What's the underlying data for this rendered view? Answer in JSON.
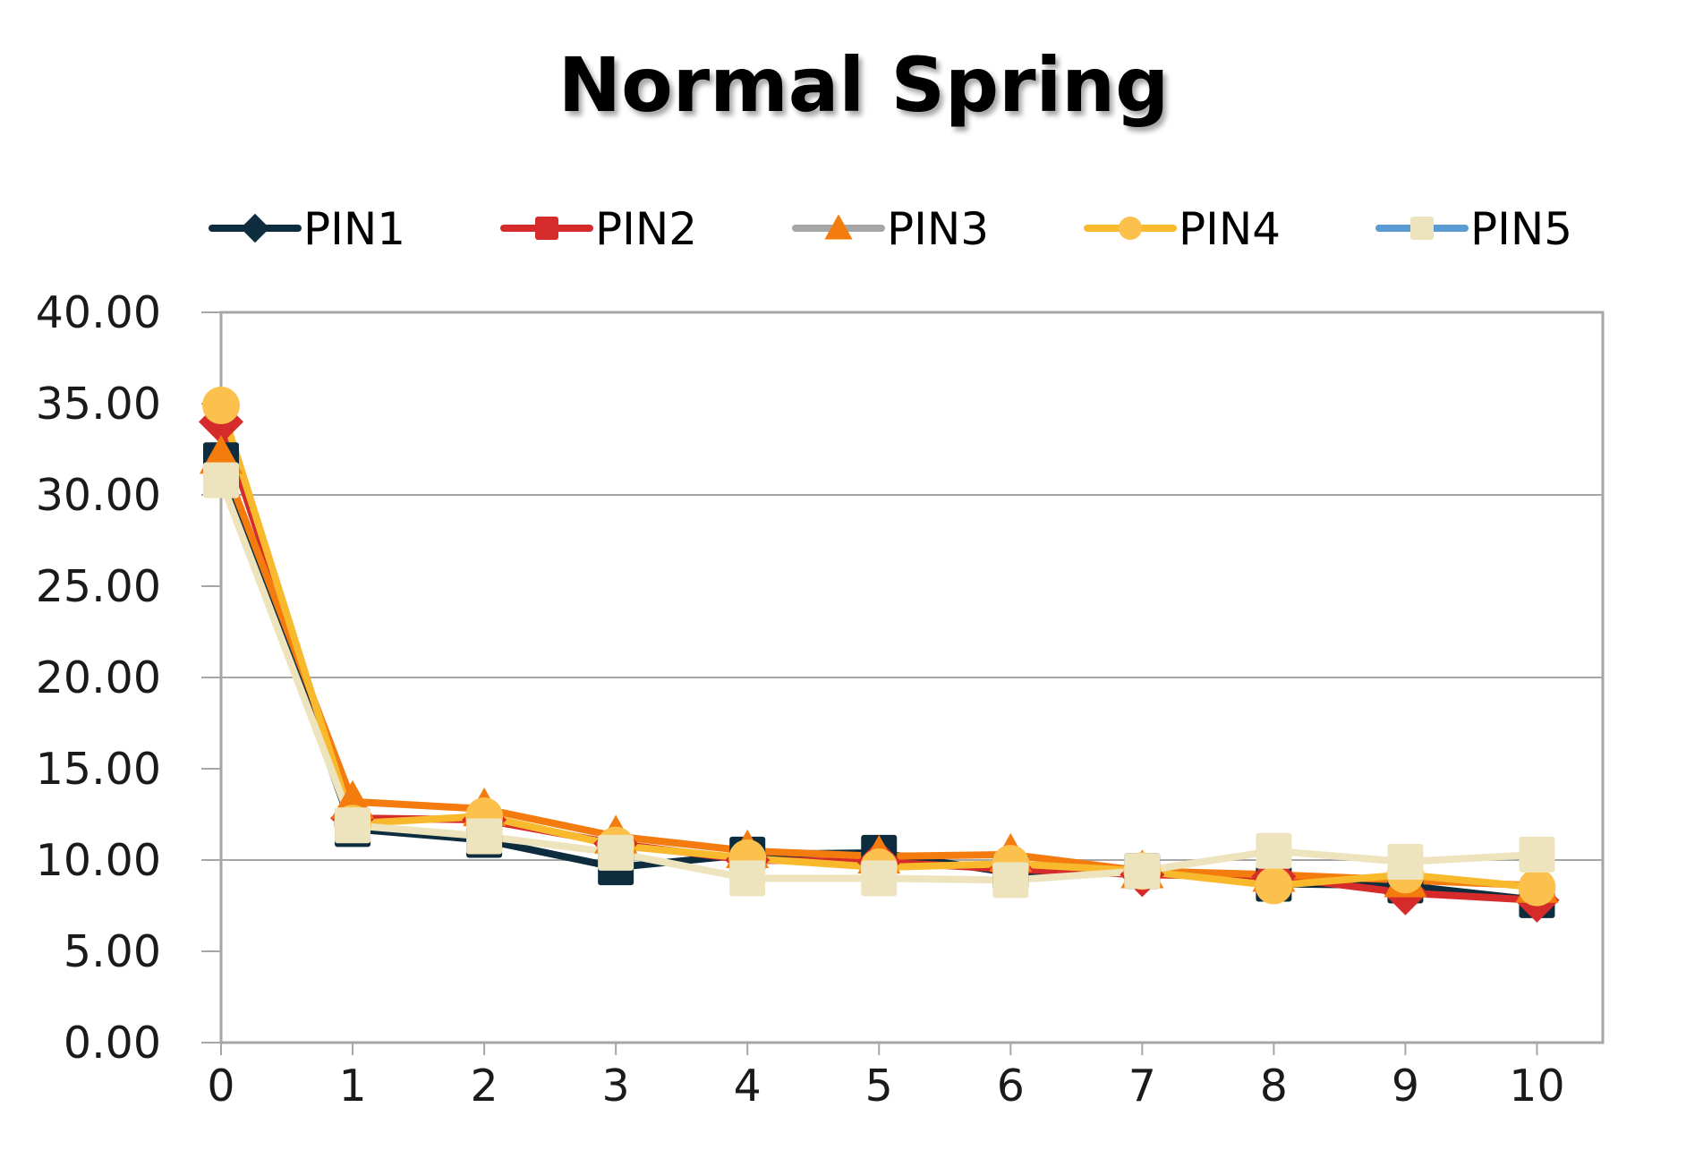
{
  "chart_data": {
    "type": "line",
    "title": "Normal Spring",
    "xlabel": "",
    "ylabel": "",
    "x": [
      0,
      1,
      2,
      3,
      4,
      5,
      6,
      7,
      8,
      9,
      10
    ],
    "xlim": [
      0,
      10.5
    ],
    "ylim": [
      0,
      40
    ],
    "y_ticks": [
      "0.00",
      "5.00",
      "10.00",
      "15.00",
      "20.00",
      "25.00",
      "30.00",
      "35.00",
      "40.00"
    ],
    "x_ticks": [
      "0",
      "1",
      "2",
      "3",
      "4",
      "5",
      "6",
      "7",
      "8",
      "9",
      "10"
    ],
    "grid": "horizontal",
    "legend": "top",
    "series": [
      {
        "name": "PIN1",
        "marker": "square",
        "line_color": "#0d2d3e",
        "marker_color": "#0d2d3e",
        "values": [
          31.9,
          11.7,
          11.1,
          9.6,
          10.3,
          10.4,
          9.3,
          9.4,
          8.7,
          8.6,
          7.8
        ]
      },
      {
        "name": "PIN2",
        "marker": "diamond",
        "line_color": "#d62b2b",
        "marker_color": "#d62b2b",
        "values": [
          34.0,
          12.3,
          12.2,
          10.9,
          10.0,
          9.9,
          9.5,
          9.2,
          9.1,
          8.2,
          7.8
        ]
      },
      {
        "name": "PIN3",
        "marker": "triangle",
        "line_color": "#f47c0f",
        "marker_color": "#f47c0f",
        "values": [
          32.1,
          13.2,
          12.8,
          11.3,
          10.5,
          10.2,
          10.3,
          9.4,
          9.2,
          8.9,
          8.6
        ]
      },
      {
        "name": "PIN4",
        "marker": "circle",
        "line_color": "#f9b92c",
        "marker_color": "#fcc14d",
        "values": [
          34.9,
          12.0,
          12.4,
          10.8,
          10.1,
          9.6,
          9.8,
          9.4,
          8.6,
          9.2,
          8.5
        ]
      },
      {
        "name": "PIN5",
        "marker": "square",
        "line_color": "#ede4be",
        "marker_color": "#ede4be",
        "legend_line_color": "#5b9bd5",
        "values": [
          30.8,
          11.9,
          11.3,
          10.4,
          9.0,
          9.0,
          8.9,
          9.4,
          10.5,
          9.9,
          10.3
        ]
      }
    ]
  },
  "legend_items": [
    {
      "label": "PIN1",
      "line": "#0d2d3e",
      "marker": "diamond",
      "marker_color": "#0d2d3e"
    },
    {
      "label": "PIN2",
      "line": "#d62b2b",
      "marker": "square",
      "marker_color": "#d62b2b"
    },
    {
      "label": "PIN3",
      "line": "#a6a6a6",
      "marker": "triangle",
      "marker_color": "#f47c0f"
    },
    {
      "label": "PIN4",
      "line": "#f9b92c",
      "marker": "circle",
      "marker_color": "#fcc14d"
    },
    {
      "label": "PIN5",
      "line": "#5b9bd5",
      "marker": "square",
      "marker_color": "#ede4be"
    }
  ]
}
